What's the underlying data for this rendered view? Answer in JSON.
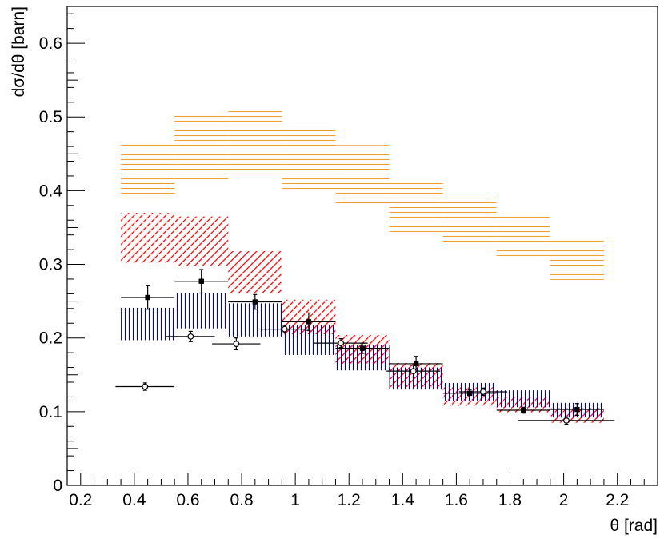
{
  "chart_data": {
    "type": "scatter",
    "title": "",
    "xlabel": "θ [rad]",
    "ylabel": "dσ/dθ [barn]",
    "xlim": [
      0.15,
      2.35
    ],
    "ylim": [
      0,
      0.65
    ],
    "x_ticks": [
      0.2,
      0.4,
      0.6,
      0.8,
      1,
      1.2,
      1.4,
      1.6,
      1.8,
      2,
      2.2
    ],
    "x_tick_labels": [
      "0.2",
      "0.4",
      "0.6",
      "0.8",
      "1",
      "1.2",
      "1.4",
      "1.6",
      "1.8",
      "2",
      "2.2"
    ],
    "y_ticks": [
      0,
      0.1,
      0.2,
      0.3,
      0.4,
      0.5,
      0.6
    ],
    "y_tick_labels": [
      "0",
      "0.1",
      "0.2",
      "0.3",
      "0.4",
      "0.5",
      "0.6"
    ],
    "grid": false,
    "bands": [
      {
        "name": "orange-band",
        "color": "#f0a030",
        "hatch": "horizontal",
        "bins": [
          {
            "xlo": 0.35,
            "xhi": 0.55,
            "ylo": 0.385,
            "yhi": 0.467
          },
          {
            "xlo": 0.55,
            "xhi": 0.75,
            "ylo": 0.413,
            "yhi": 0.503
          },
          {
            "xlo": 0.75,
            "xhi": 0.95,
            "ylo": 0.42,
            "yhi": 0.508
          },
          {
            "xlo": 0.95,
            "xhi": 1.15,
            "ylo": 0.4,
            "yhi": 0.487
          },
          {
            "xlo": 1.15,
            "xhi": 1.35,
            "ylo": 0.38,
            "yhi": 0.462
          },
          {
            "xlo": 1.35,
            "xhi": 1.55,
            "ylo": 0.343,
            "yhi": 0.414
          },
          {
            "xlo": 1.55,
            "xhi": 1.75,
            "ylo": 0.323,
            "yhi": 0.394
          },
          {
            "xlo": 1.75,
            "xhi": 1.95,
            "ylo": 0.308,
            "yhi": 0.37
          },
          {
            "xlo": 1.95,
            "xhi": 2.15,
            "ylo": 0.279,
            "yhi": 0.337
          }
        ]
      },
      {
        "name": "red-band",
        "color": "#ff0000",
        "hatch": "diagonal",
        "bins": [
          {
            "xlo": 0.35,
            "xhi": 0.55,
            "ylo": 0.302,
            "yhi": 0.37
          },
          {
            "xlo": 0.55,
            "xhi": 0.75,
            "ylo": 0.298,
            "yhi": 0.365
          },
          {
            "xlo": 0.75,
            "xhi": 0.95,
            "ylo": 0.26,
            "yhi": 0.318
          },
          {
            "xlo": 0.95,
            "xhi": 1.15,
            "ylo": 0.205,
            "yhi": 0.252
          },
          {
            "xlo": 1.15,
            "xhi": 1.35,
            "ylo": 0.165,
            "yhi": 0.204
          },
          {
            "xlo": 1.35,
            "xhi": 1.55,
            "ylo": 0.133,
            "yhi": 0.166
          },
          {
            "xlo": 1.55,
            "xhi": 1.75,
            "ylo": 0.108,
            "yhi": 0.133
          },
          {
            "xlo": 1.75,
            "xhi": 1.95,
            "ylo": 0.098,
            "yhi": 0.12
          },
          {
            "xlo": 1.95,
            "xhi": 2.15,
            "ylo": 0.085,
            "yhi": 0.105
          }
        ]
      },
      {
        "name": "blue-band",
        "color": "#0000cc",
        "hatch": "vertical",
        "bins": [
          {
            "xlo": 0.35,
            "xhi": 0.55,
            "ylo": 0.197,
            "yhi": 0.241
          },
          {
            "xlo": 0.55,
            "xhi": 0.75,
            "ylo": 0.213,
            "yhi": 0.261
          },
          {
            "xlo": 0.75,
            "xhi": 0.95,
            "ylo": 0.202,
            "yhi": 0.247
          },
          {
            "xlo": 0.95,
            "xhi": 1.15,
            "ylo": 0.177,
            "yhi": 0.217
          },
          {
            "xlo": 1.15,
            "xhi": 1.35,
            "ylo": 0.156,
            "yhi": 0.191
          },
          {
            "xlo": 1.35,
            "xhi": 1.55,
            "ylo": 0.13,
            "yhi": 0.16
          },
          {
            "xlo": 1.55,
            "xhi": 1.75,
            "ylo": 0.114,
            "yhi": 0.139
          },
          {
            "xlo": 1.75,
            "xhi": 1.95,
            "ylo": 0.106,
            "yhi": 0.129
          },
          {
            "xlo": 1.95,
            "xhi": 2.15,
            "ylo": 0.092,
            "yhi": 0.112
          }
        ]
      }
    ],
    "series": [
      {
        "name": "filled-squares",
        "marker": "square-filled",
        "color": "#000000",
        "points": [
          {
            "x": 0.45,
            "y": 0.255,
            "xerr": 0.1,
            "yerr": 0.016
          },
          {
            "x": 0.65,
            "y": 0.277,
            "xerr": 0.1,
            "yerr": 0.016
          },
          {
            "x": 0.85,
            "y": 0.249,
            "xerr": 0.1,
            "yerr": 0.01
          },
          {
            "x": 1.05,
            "y": 0.222,
            "xerr": 0.1,
            "yerr": 0.012
          },
          {
            "x": 1.25,
            "y": 0.186,
            "xerr": 0.1,
            "yerr": 0.007
          },
          {
            "x": 1.45,
            "y": 0.165,
            "xerr": 0.1,
            "yerr": 0.01
          },
          {
            "x": 1.65,
            "y": 0.125,
            "xerr": 0.1,
            "yerr": 0.005
          },
          {
            "x": 1.85,
            "y": 0.102,
            "xerr": 0.1,
            "yerr": 0.004
          },
          {
            "x": 2.05,
            "y": 0.103,
            "xerr": 0.1,
            "yerr": 0.008
          }
        ]
      },
      {
        "name": "open-circles",
        "marker": "circle-open",
        "color": "#000000",
        "points": [
          {
            "x": 0.44,
            "y": 0.134,
            "xerr": 0.11,
            "yerr": 0.005
          },
          {
            "x": 0.61,
            "y": 0.202,
            "xerr": 0.09,
            "yerr": 0.007
          },
          {
            "x": 0.78,
            "y": 0.192,
            "xerr": 0.09,
            "yerr": 0.008
          },
          {
            "x": 0.96,
            "y": 0.212,
            "xerr": 0.09,
            "yerr": 0.005
          },
          {
            "x": 1.17,
            "y": 0.193,
            "xerr": 0.1,
            "yerr": 0.006
          },
          {
            "x": 1.44,
            "y": 0.155,
            "xerr": 0.1,
            "yerr": 0.008
          },
          {
            "x": 1.7,
            "y": 0.127,
            "xerr": 0.09,
            "yerr": 0.005
          },
          {
            "x": 2.01,
            "y": 0.088,
            "xerr": 0.18,
            "yerr": 0.005
          }
        ]
      }
    ]
  }
}
